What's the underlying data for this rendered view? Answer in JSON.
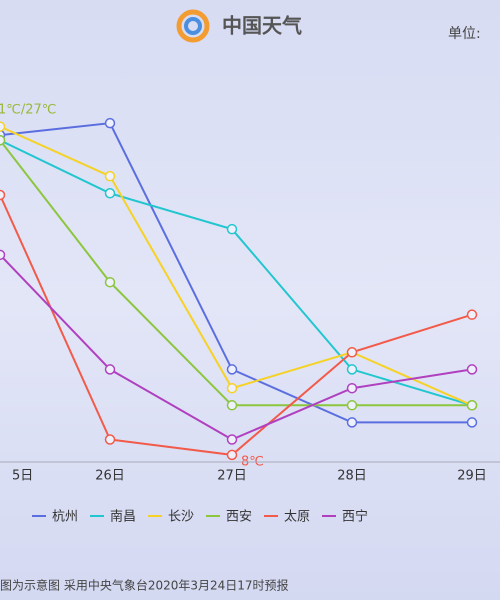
{
  "chart_data": {
    "type": "line",
    "title": "中国天气",
    "unit_label": "单位:",
    "categories": [
      "5日",
      "26日",
      "27日",
      "28日",
      "29日"
    ],
    "series": [
      {
        "name": "杭州",
        "color": "#5b6ee0",
        "values": [
          26.7,
          27.4,
          13,
          9.9,
          9.9
        ]
      },
      {
        "name": "南昌",
        "color": "#22c6cf",
        "values": [
          26.4,
          23.3,
          21.2,
          13,
          10.9
        ]
      },
      {
        "name": "长沙",
        "color": "#f5d225",
        "values": [
          27.2,
          24.3,
          11.9,
          14,
          10.9
        ]
      },
      {
        "name": "西安",
        "color": "#8cc63f",
        "values": [
          26.4,
          18.1,
          10.9,
          10.9,
          10.9
        ]
      },
      {
        "name": "太原",
        "color": "#f25a4a",
        "values": [
          23.2,
          8.9,
          8,
          14,
          16.2
        ]
      },
      {
        "name": "西宁",
        "color": "#b040c0",
        "values": [
          19.7,
          13,
          8.9,
          11.9,
          13
        ]
      }
    ],
    "annotations": [
      {
        "text": "1℃/27℃"
      },
      {
        "text": "8℃"
      }
    ],
    "footer": "图为示意图  采用中央气象台2020年3月24日17时预报"
  }
}
